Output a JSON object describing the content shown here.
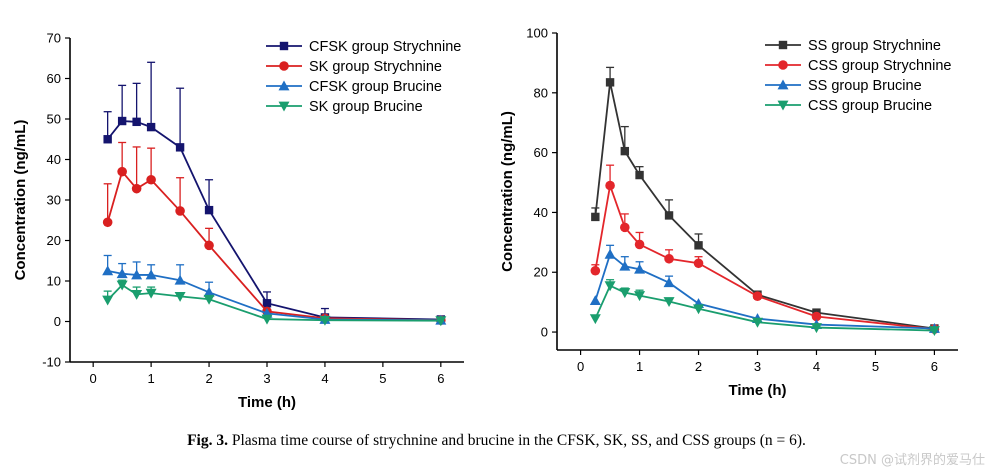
{
  "chart_data": [
    {
      "type": "line",
      "panel": "left",
      "x": [
        0.25,
        0.5,
        0.75,
        1,
        1.5,
        2,
        3,
        4,
        6
      ],
      "xlabel": "Time (h)",
      "ylabel": "Concentration (ng/mL)",
      "xlim": [
        -0.4,
        6.4
      ],
      "ylim": [
        -10,
        70
      ],
      "xticks": [
        0,
        1,
        2,
        3,
        4,
        5,
        6
      ],
      "yticks": [
        -10,
        0,
        10,
        20,
        30,
        40,
        50,
        60,
        70
      ],
      "legend": "top-right",
      "series": [
        {
          "name": "CFSK group Strychnine",
          "color": "#14146e",
          "marker": "square",
          "values": [
            45,
            49.5,
            49.3,
            48,
            43,
            27.5,
            4.5,
            1,
            0.5
          ],
          "errors": [
            6.8,
            8.8,
            9.5,
            16,
            14.6,
            7.5,
            2.8,
            2.2,
            0.3
          ]
        },
        {
          "name": "SK group Strychnine",
          "color": "#d92020",
          "marker": "circle",
          "values": [
            24.5,
            37,
            32.8,
            35,
            27.3,
            18.8,
            2.5,
            0.8,
            0.3
          ],
          "errors": [
            9.5,
            7.2,
            10.3,
            7.8,
            8.2,
            4.2,
            0,
            0,
            0
          ]
        },
        {
          "name": "CFSK group Brucine",
          "color": "#1f6fc4",
          "marker": "triangle-up",
          "values": [
            12.5,
            11.8,
            11.5,
            11.5,
            10.2,
            7.2,
            2,
            0.5,
            0.3
          ],
          "errors": [
            3.8,
            2.5,
            3.2,
            2.5,
            3.8,
            2.5,
            0,
            0,
            0
          ]
        },
        {
          "name": "SK group Brucine",
          "color": "#1a9e6e",
          "marker": "triangle-down",
          "values": [
            5.3,
            9,
            6.7,
            7,
            6.2,
            5.5,
            0.6,
            0.3,
            0.2
          ],
          "errors": [
            2.2,
            1.2,
            1.8,
            1.5,
            0,
            0,
            0,
            0,
            0
          ]
        }
      ]
    },
    {
      "type": "line",
      "panel": "right",
      "x": [
        0.25,
        0.5,
        0.75,
        1,
        1.5,
        2,
        3,
        4,
        6
      ],
      "xlabel": "Time (h)",
      "ylabel": "Concentration (ng/mL)",
      "xlim": [
        -0.4,
        6.4
      ],
      "ylim": [
        -6,
        100
      ],
      "xticks": [
        0,
        1,
        2,
        3,
        4,
        5,
        6
      ],
      "yticks": [
        0,
        20,
        40,
        60,
        80,
        100
      ],
      "legend": "top-right",
      "series": [
        {
          "name": "SS group Strychnine",
          "color": "#333333",
          "marker": "square",
          "values": [
            38.5,
            83.5,
            60.5,
            52.5,
            39,
            29,
            12.5,
            6.5,
            1.2
          ],
          "errors": [
            3,
            5,
            8.2,
            2.8,
            5.2,
            3.8,
            0,
            0,
            0
          ]
        },
        {
          "name": "CSS group Strychnine",
          "color": "#e3262b",
          "marker": "circle",
          "values": [
            20.5,
            49,
            35,
            29.3,
            24.5,
            23,
            12,
            5.2,
            1
          ],
          "errors": [
            2,
            6.8,
            4.5,
            4,
            3,
            2.2,
            0,
            0,
            0
          ]
        },
        {
          "name": "SS group Brucine",
          "color": "#1f6fc4",
          "marker": "triangle-up",
          "values": [
            10.5,
            26,
            22,
            21,
            16.5,
            9.5,
            4.5,
            2.5,
            1.2
          ],
          "errors": [
            0,
            3,
            3.2,
            2.5,
            2.2,
            0,
            0,
            0,
            0
          ]
        },
        {
          "name": "CSS group Brucine",
          "color": "#1a9e6e",
          "marker": "triangle-down",
          "values": [
            4.5,
            15.5,
            13.2,
            12.2,
            10.2,
            7.8,
            3.3,
            1.5,
            0.5
          ],
          "errors": [
            0,
            2,
            1.5,
            1.8,
            1,
            0,
            0,
            0,
            0
          ]
        }
      ]
    }
  ],
  "caption": {
    "label": "Fig. 3.",
    "text": "Plasma time course of strychnine and brucine in the CFSK, SK, SS, and CSS groups (n = 6)."
  },
  "watermark": "CSDN @试剂界的爱马仕"
}
